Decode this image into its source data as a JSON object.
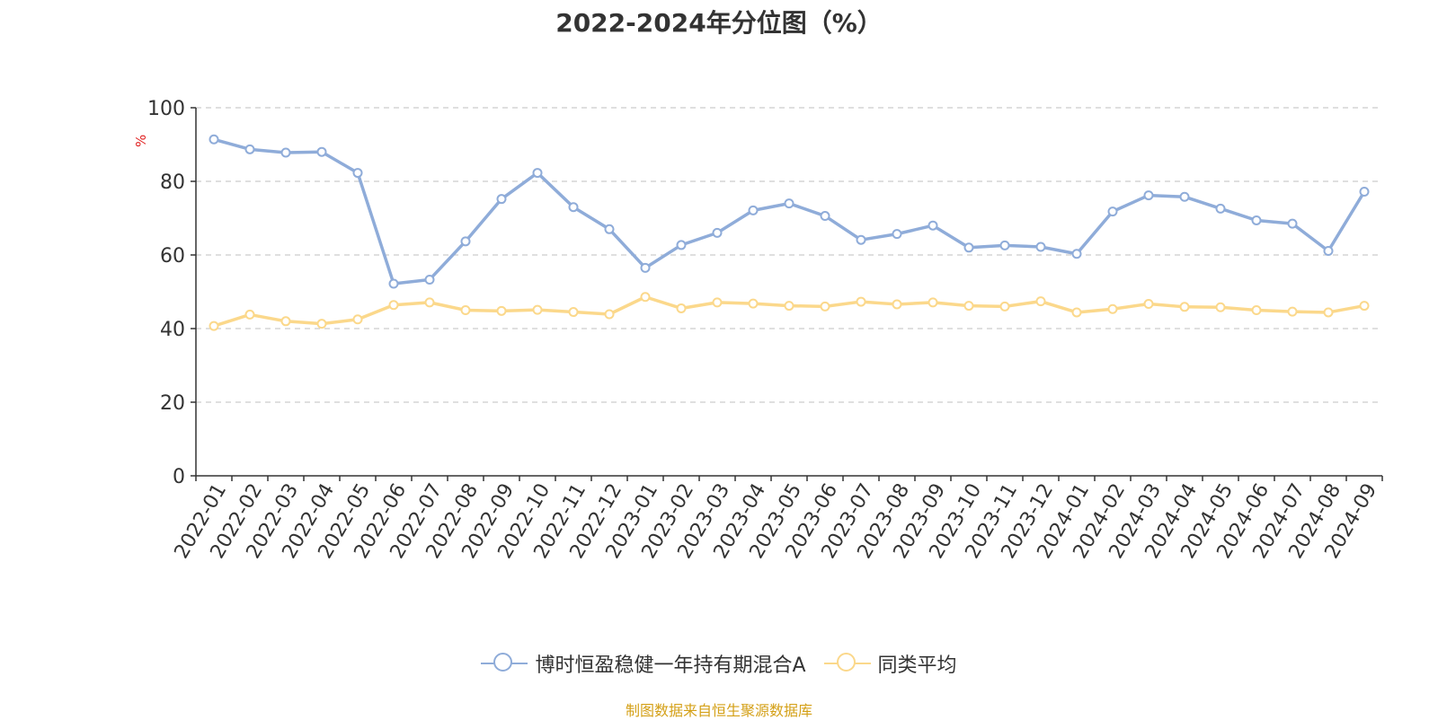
{
  "colors": {
    "series_fund": "#8facd9",
    "series_avg": "#fbd88b",
    "axis": "#333333",
    "grid": "#cccccc",
    "unit": "#e02020",
    "source": "#d4a017"
  },
  "legend": {
    "fund_label": "博时恒盈稳健一年持有期混合A",
    "avg_label": "同类平均"
  },
  "source_note": "制图数据来自恒生聚源数据库",
  "chart_data": {
    "type": "line",
    "title": "2022-2024年分位图（%）",
    "ylabel": "%",
    "xlabel": "",
    "ylim": [
      0,
      100
    ],
    "yticks": [
      0,
      20,
      40,
      60,
      80,
      100
    ],
    "grid": true,
    "legend_position": "bottom",
    "categories": [
      "2022-01",
      "2022-02",
      "2022-03",
      "2022-04",
      "2022-05",
      "2022-06",
      "2022-07",
      "2022-08",
      "2022-09",
      "2022-10",
      "2022-11",
      "2022-12",
      "2023-01",
      "2023-02",
      "2023-03",
      "2023-04",
      "2023-05",
      "2023-06",
      "2023-07",
      "2023-08",
      "2023-09",
      "2023-10",
      "2023-11",
      "2023-12",
      "2024-01",
      "2024-02",
      "2024-03",
      "2024-04",
      "2024-05",
      "2024-06",
      "2024-07",
      "2024-08",
      "2024-09"
    ],
    "series": [
      {
        "name": "博时恒盈稳健一年持有期混合A",
        "values": [
          91.4,
          88.7,
          87.8,
          88.0,
          82.3,
          52.2,
          53.3,
          63.7,
          75.2,
          82.3,
          73.0,
          67.0,
          56.5,
          62.7,
          66.0,
          72.1,
          74.0,
          70.6,
          64.1,
          65.7,
          68.0,
          62.0,
          62.6,
          62.2,
          60.3,
          71.8,
          76.2,
          75.8,
          72.6,
          69.4,
          68.5,
          61.1,
          77.2
        ]
      },
      {
        "name": "同类平均",
        "values": [
          40.7,
          43.8,
          42.0,
          41.3,
          42.5,
          46.4,
          47.1,
          45.0,
          44.8,
          45.1,
          44.5,
          43.9,
          48.6,
          45.5,
          47.1,
          46.8,
          46.2,
          46.0,
          47.3,
          46.6,
          47.1,
          46.2,
          46.0,
          47.4,
          44.4,
          45.3,
          46.7,
          45.9,
          45.8,
          45.0,
          44.6,
          44.4,
          46.2
        ]
      }
    ]
  }
}
